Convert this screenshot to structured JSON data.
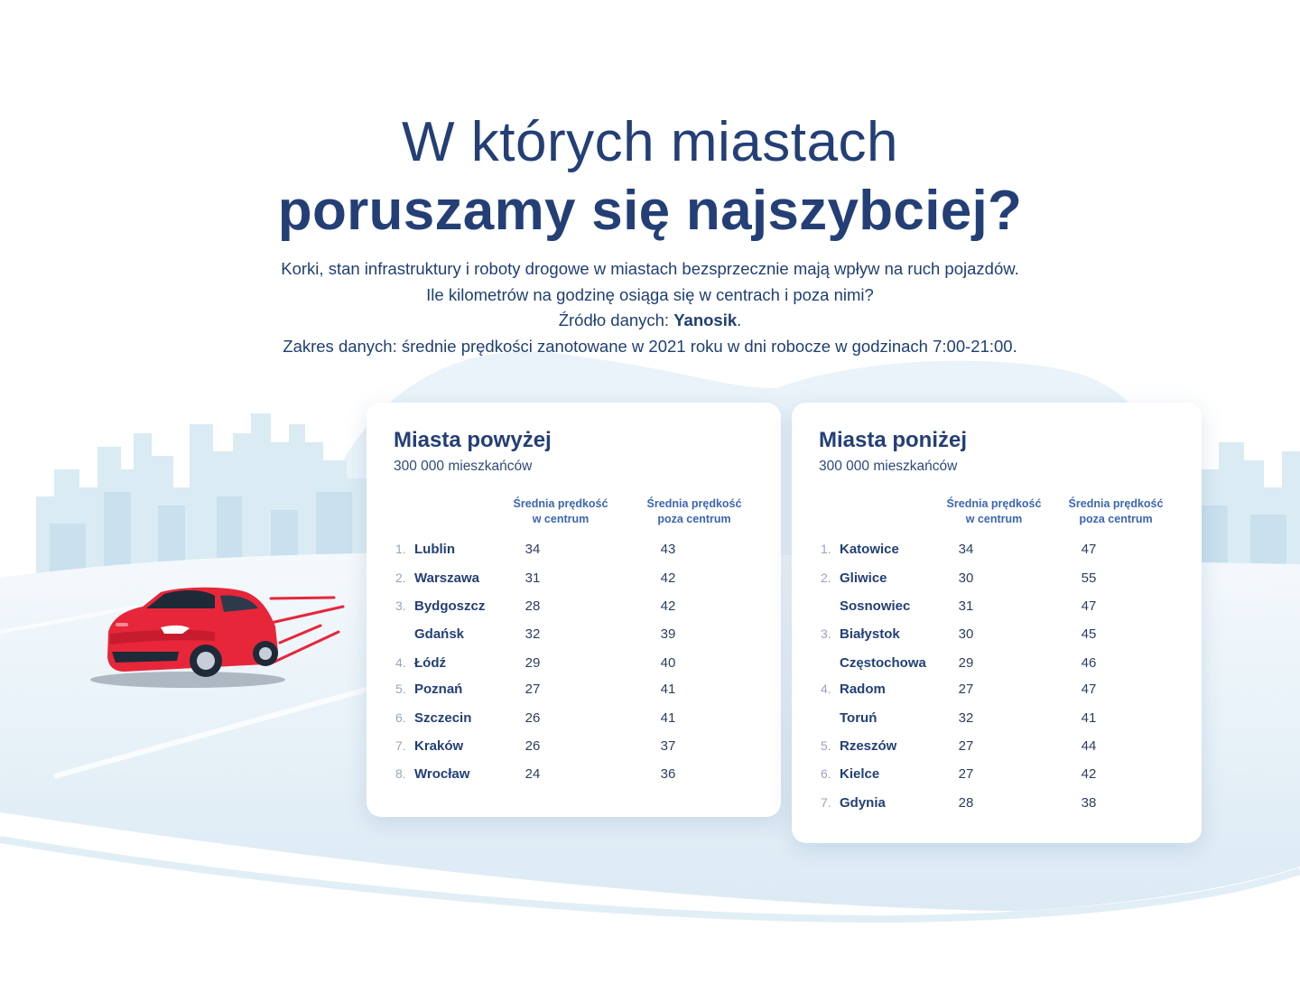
{
  "header": {
    "title_line1": "W których miastach",
    "title_line2": "poruszamy się najszybciej?",
    "desc_line1": "Korki, stan infrastruktury i roboty drogowe w miastach bezsprzecznie mają wpływ na ruch pojazdów.",
    "desc_line2": "Ile kilometrów na godzinę osiąga się w centrach i poza nimi?",
    "source_prefix": "Źródło danych: ",
    "source_name": "Yanosik",
    "source_suffix": ".",
    "desc_line4": "Zakres danych: średnie prędkości zanotowane w 2021 roku w dni robocze w godzinach 7:00-21:00."
  },
  "illustration": {
    "car": "red-car-icon",
    "background": "city-skyline"
  },
  "colors": {
    "title": "#233f76",
    "accent": "#3d66b0",
    "car": "#e8263a",
    "sky": "#e3eff7"
  },
  "cards": [
    {
      "title": "Miasta powyżej",
      "subtitle": "300 000 mieszkańców",
      "col1": "Średnia prędkość w centrum",
      "col2": "Średnia prędkość poza centrum",
      "rows": [
        {
          "rank": "1.",
          "city": "Lublin",
          "center": "34",
          "outside": "43"
        },
        {
          "rank": "2.",
          "city": "Warszawa",
          "center": "31",
          "outside": "42"
        },
        {
          "rank": "3.",
          "city": "Bydgoszcz",
          "center": "28",
          "outside": "42"
        },
        {
          "rank": "",
          "city": "Gdańsk",
          "center": "32",
          "outside": "39"
        },
        {
          "rank": "4.",
          "city": "Łódź",
          "center": "29",
          "outside": "40"
        },
        {
          "rank": "5.",
          "city": "Poznań",
          "center": "27",
          "outside": "41"
        },
        {
          "rank": "6.",
          "city": "Szczecin",
          "center": "26",
          "outside": "41"
        },
        {
          "rank": "7.",
          "city": "Kraków",
          "center": "26",
          "outside": "37"
        },
        {
          "rank": "8.",
          "city": "Wrocław",
          "center": "24",
          "outside": "36"
        }
      ]
    },
    {
      "title": "Miasta poniżej",
      "subtitle": "300 000 mieszkańców",
      "col1": "Średnia prędkość w centrum",
      "col2": "Średnia prędkość poza centrum",
      "rows": [
        {
          "rank": "1.",
          "city": "Katowice",
          "center": "34",
          "outside": "47"
        },
        {
          "rank": "2.",
          "city": "Gliwice",
          "center": "30",
          "outside": "55"
        },
        {
          "rank": "",
          "city": "Sosnowiec",
          "center": "31",
          "outside": "47"
        },
        {
          "rank": "3.",
          "city": "Białystok",
          "center": "30",
          "outside": "45"
        },
        {
          "rank": "",
          "city": "Częstochowa",
          "center": "29",
          "outside": "46"
        },
        {
          "rank": "4.",
          "city": "Radom",
          "center": "27",
          "outside": "47"
        },
        {
          "rank": "",
          "city": "Toruń",
          "center": "32",
          "outside": "41"
        },
        {
          "rank": "5.",
          "city": "Rzeszów",
          "center": "27",
          "outside": "44"
        },
        {
          "rank": "6.",
          "city": "Kielce",
          "center": "27",
          "outside": "42"
        },
        {
          "rank": "7.",
          "city": "Gdynia",
          "center": "28",
          "outside": "38"
        }
      ]
    }
  ]
}
